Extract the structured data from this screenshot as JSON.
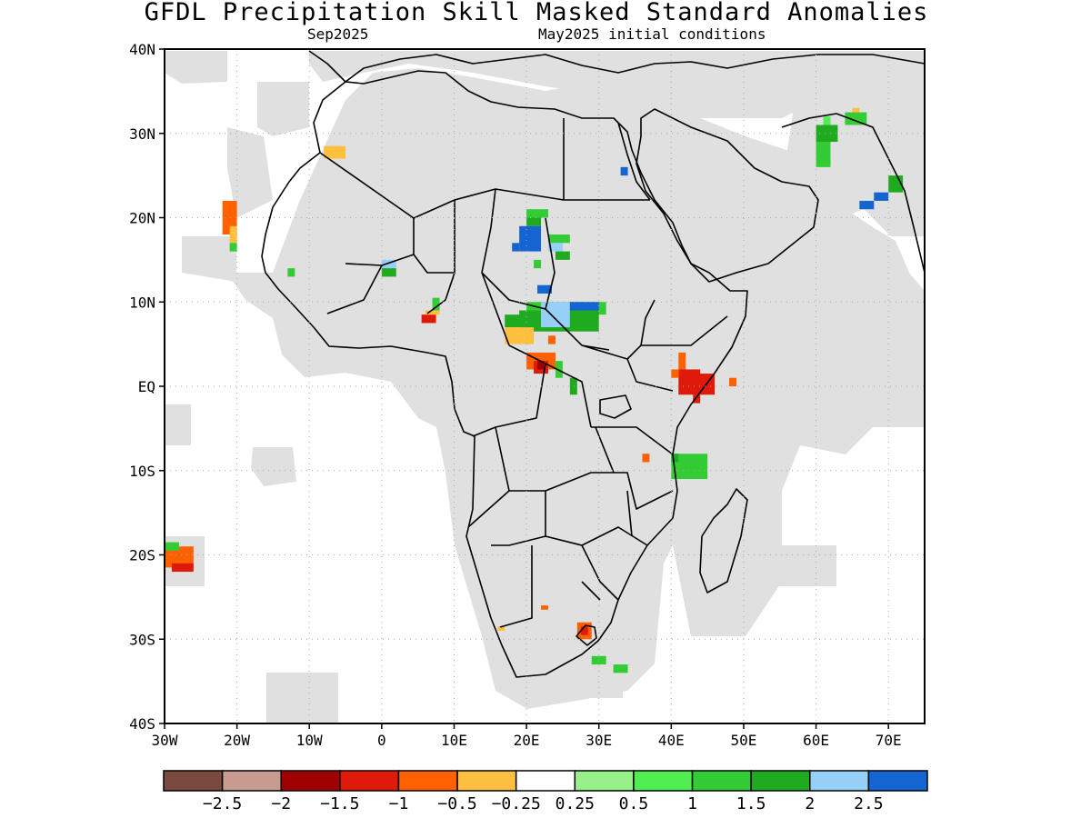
{
  "title": "GFDL Precipitation Skill Masked Standard Anomalies",
  "subtitle_left": "Sep2025",
  "subtitle_right": "May2025 initial conditions",
  "map": {
    "lon_range": [
      -30,
      75
    ],
    "lat_range": [
      -40,
      40
    ],
    "colors": {
      "land_masked": "#e0e0e0",
      "ocean": "#ffffff",
      "border": "#000000",
      "gridline": "#aaaaaa"
    },
    "lat_ticks": [
      {
        "lat": 40,
        "label": "40N"
      },
      {
        "lat": 30,
        "label": "30N"
      },
      {
        "lat": 20,
        "label": "20N"
      },
      {
        "lat": 10,
        "label": "10N"
      },
      {
        "lat": 0,
        "label": "EQ"
      },
      {
        "lat": -10,
        "label": "10S"
      },
      {
        "lat": -20,
        "label": "20S"
      },
      {
        "lat": -30,
        "label": "30S"
      },
      {
        "lat": -40,
        "label": "40S"
      }
    ],
    "lon_ticks": [
      {
        "lon": -30,
        "label": "30W"
      },
      {
        "lon": -20,
        "label": "20W"
      },
      {
        "lon": -10,
        "label": "10W"
      },
      {
        "lon": 0,
        "label": "0"
      },
      {
        "lon": 10,
        "label": "10E"
      },
      {
        "lon": 20,
        "label": "20E"
      },
      {
        "lon": 30,
        "label": "30E"
      },
      {
        "lon": 40,
        "label": "40E"
      },
      {
        "lon": 50,
        "label": "50E"
      },
      {
        "lon": 60,
        "label": "60E"
      },
      {
        "lon": 70,
        "label": "70E"
      }
    ]
  },
  "legend": {
    "bins": [
      {
        "color": "#7a4a3e"
      },
      {
        "color": "#c89b90"
      },
      {
        "color": "#a00000"
      },
      {
        "color": "#e01a0a"
      },
      {
        "color": "#ff6000"
      },
      {
        "color": "#ffc040"
      },
      {
        "color": "#ffffff"
      },
      {
        "color": "#98f08a"
      },
      {
        "color": "#50ee50"
      },
      {
        "color": "#34cc34"
      },
      {
        "color": "#1faa1f"
      },
      {
        "color": "#96d0f8"
      },
      {
        "color": "#1464d2"
      }
    ],
    "labels": [
      "−2.5",
      "−2",
      "−1.5",
      "−1",
      "−0.5",
      "−0.25",
      "0.25",
      "0.5",
      "1",
      "1.5",
      "2",
      "2.5"
    ]
  },
  "anomalies": [
    {
      "lon": [
        -22,
        -20
      ],
      "lat": [
        18,
        22
      ],
      "value": -1
    },
    {
      "lon": [
        -21,
        -20
      ],
      "lat": [
        17,
        19
      ],
      "value": -0.5
    },
    {
      "lon": [
        -21,
        -20
      ],
      "lat": [
        16,
        17
      ],
      "value": 1
    },
    {
      "lon": [
        -8,
        -5
      ],
      "lat": [
        27,
        28.5
      ],
      "value": -0.5
    },
    {
      "lon": [
        -30,
        -26
      ],
      "lat": [
        -21.5,
        -19
      ],
      "value": -1
    },
    {
      "lon": [
        -29,
        -26
      ],
      "lat": [
        -22,
        -21
      ],
      "value": -1.5
    },
    {
      "lon": [
        -30,
        -28
      ],
      "lat": [
        -19.5,
        -18.5
      ],
      "value": 1
    },
    {
      "lon": [
        -13,
        -12
      ],
      "lat": [
        13,
        14
      ],
      "value": 1
    },
    {
      "lon": [
        0,
        2
      ],
      "lat": [
        14,
        15
      ],
      "value": 2
    },
    {
      "lon": [
        0,
        2
      ],
      "lat": [
        13,
        14
      ],
      "value": 1.5
    },
    {
      "lon": [
        7,
        8
      ],
      "lat": [
        9,
        10.5
      ],
      "value": 1
    },
    {
      "lon": [
        5.5,
        7.5
      ],
      "lat": [
        7.5,
        8.5
      ],
      "value": -1.5
    },
    {
      "lon": [
        6,
        8
      ],
      "lat": [
        8.5,
        9
      ],
      "value": -0.5
    },
    {
      "lon": [
        20,
        23
      ],
      "lat": [
        20,
        21
      ],
      "value": 1
    },
    {
      "lon": [
        20,
        22
      ],
      "lat": [
        19,
        20
      ],
      "value": 1.5
    },
    {
      "lon": [
        19,
        22
      ],
      "lat": [
        16,
        19
      ],
      "value": 2.5
    },
    {
      "lon": [
        18,
        19
      ],
      "lat": [
        16,
        17
      ],
      "value": 2.5
    },
    {
      "lon": [
        21,
        22
      ],
      "lat": [
        14,
        15
      ],
      "value": 1
    },
    {
      "lon": [
        23,
        26
      ],
      "lat": [
        17,
        18
      ],
      "value": 1
    },
    {
      "lon": [
        23,
        25
      ],
      "lat": [
        16,
        17
      ],
      "value": 2
    },
    {
      "lon": [
        24,
        26
      ],
      "lat": [
        15,
        16
      ],
      "value": 1.5
    },
    {
      "lon": [
        21.5,
        23.5
      ],
      "lat": [
        11,
        12
      ],
      "value": 2.5
    },
    {
      "lon": [
        20,
        31
      ],
      "lat": [
        8.5,
        10
      ],
      "value": 1
    },
    {
      "lon": [
        17,
        21
      ],
      "lat": [
        7,
        8.5
      ],
      "value": 1.5
    },
    {
      "lon": [
        19,
        30
      ],
      "lat": [
        6.5,
        9
      ],
      "value": 1.5
    },
    {
      "lon": [
        22,
        26
      ],
      "lat": [
        7,
        10
      ],
      "value": 2
    },
    {
      "lon": [
        26,
        30
      ],
      "lat": [
        9,
        10
      ],
      "value": 2.5
    },
    {
      "lon": [
        17,
        21
      ],
      "lat": [
        5,
        7
      ],
      "value": -0.5
    },
    {
      "lon": [
        23,
        24
      ],
      "lat": [
        5,
        6
      ],
      "value": -1
    },
    {
      "lon": [
        20,
        24
      ],
      "lat": [
        2,
        4
      ],
      "value": -1
    },
    {
      "lon": [
        21,
        23
      ],
      "lat": [
        1.5,
        3
      ],
      "value": -1.5
    },
    {
      "lon": [
        21.5,
        22.5
      ],
      "lat": [
        2,
        3
      ],
      "value": -2
    },
    {
      "lon": [
        24,
        25
      ],
      "lat": [
        1,
        3
      ],
      "value": 1
    },
    {
      "lon": [
        26,
        27
      ],
      "lat": [
        -1,
        1
      ],
      "value": 1.5
    },
    {
      "lon": [
        33,
        34
      ],
      "lat": [
        25,
        26
      ],
      "value": 2.5
    },
    {
      "lon": [
        41,
        42
      ],
      "lat": [
        2,
        4
      ],
      "value": -1
    },
    {
      "lon": [
        41,
        44
      ],
      "lat": [
        -1,
        2
      ],
      "value": -1.5
    },
    {
      "lon": [
        43,
        46
      ],
      "lat": [
        -1,
        1.5
      ],
      "value": -1.5
    },
    {
      "lon": [
        43,
        44
      ],
      "lat": [
        -2,
        -1
      ],
      "value": -1.5
    },
    {
      "lon": [
        40,
        41
      ],
      "lat": [
        1,
        2
      ],
      "value": -1
    },
    {
      "lon": [
        48,
        49
      ],
      "lat": [
        0,
        1
      ],
      "value": -1
    },
    {
      "lon": [
        40,
        45
      ],
      "lat": [
        -11,
        -8
      ],
      "value": 1
    },
    {
      "lon": [
        40,
        41
      ],
      "lat": [
        -9,
        -8
      ],
      "value": 1.5
    },
    {
      "lon": [
        36,
        37
      ],
      "lat": [
        -9,
        -8
      ],
      "value": -1
    },
    {
      "lon": [
        60,
        62
      ],
      "lat": [
        26,
        29
      ],
      "value": 1
    },
    {
      "lon": [
        60,
        63
      ],
      "lat": [
        29,
        31
      ],
      "value": 1.5
    },
    {
      "lon": [
        61,
        62
      ],
      "lat": [
        31,
        32
      ],
      "value": 0.5
    },
    {
      "lon": [
        64,
        67
      ],
      "lat": [
        31,
        32.5
      ],
      "value": 1
    },
    {
      "lon": [
        65,
        66
      ],
      "lat": [
        32.5,
        33
      ],
      "value": -0.5
    },
    {
      "lon": [
        66,
        68
      ],
      "lat": [
        21,
        22
      ],
      "value": 2.5
    },
    {
      "lon": [
        68,
        70
      ],
      "lat": [
        22,
        23
      ],
      "value": 2.5
    },
    {
      "lon": [
        70,
        72
      ],
      "lat": [
        23,
        25
      ],
      "value": 1.5
    },
    {
      "lon": [
        22,
        23
      ],
      "lat": [
        -26.5,
        -26
      ],
      "value": -1
    },
    {
      "lon": [
        27,
        29
      ],
      "lat": [
        -30,
        -28
      ],
      "value": -1
    },
    {
      "lon": [
        27.5,
        28.5
      ],
      "lat": [
        -29.5,
        -28.5
      ],
      "value": -1.5
    },
    {
      "lon": [
        29,
        31
      ],
      "lat": [
        -33,
        -32
      ],
      "value": 1
    },
    {
      "lon": [
        32,
        34
      ],
      "lat": [
        -34,
        -33
      ],
      "value": 1
    },
    {
      "lon": [
        16,
        17
      ],
      "lat": [
        -29,
        -28.5
      ],
      "value": -0.5
    }
  ]
}
